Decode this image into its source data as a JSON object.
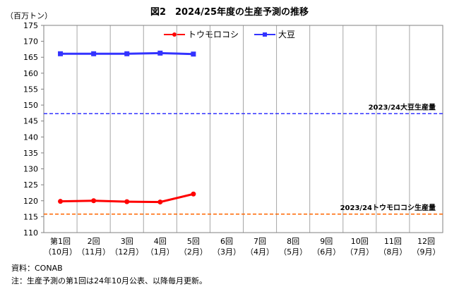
{
  "title": "図2　2024/25年度の生産予測の推移",
  "unit_label": "（百万トン）",
  "legend": [
    {
      "label": "トウモロコシ",
      "color": "#ff0000"
    },
    {
      "label": "大豆",
      "color": "#3333ff"
    }
  ],
  "notes": {
    "source": "資料：CONAB",
    "footnote": "注：生産予測の第1回は24年10月公表、以降毎月更新。"
  },
  "chart_data": {
    "type": "line",
    "x_top": [
      "第1回",
      "2回",
      "3回",
      "4回",
      "5回",
      "6回",
      "7回",
      "8回",
      "9回",
      "10回",
      "11回",
      "12回"
    ],
    "x_bottom": [
      "（10月）",
      "（11月）",
      "（12月）",
      "（1月）",
      "（2月）",
      "（3月）",
      "（4月）",
      "（5月）",
      "（6月）",
      "（7月）",
      "（8月）",
      "（9月）"
    ],
    "ylim": [
      110,
      175
    ],
    "yticks": [
      110,
      115,
      120,
      125,
      130,
      135,
      140,
      145,
      150,
      155,
      160,
      165,
      170,
      175
    ],
    "grid": "vertical",
    "series": [
      {
        "name": "トウモロコシ",
        "color": "#ff0000",
        "marker": "circle",
        "values": [
          119.8,
          120.0,
          119.7,
          119.6,
          122.1
        ]
      },
      {
        "name": "大豆",
        "color": "#3333ff",
        "marker": "square",
        "values": [
          166.1,
          166.1,
          166.1,
          166.3,
          166.0
        ]
      }
    ],
    "reference_lines": [
      {
        "label": "2023/24大豆生産量",
        "value": 147.3,
        "color": "#3333ff",
        "style": "dashed"
      },
      {
        "label": "2023/24トウモロコシ生産量",
        "value": 115.8,
        "color": "#ff6600",
        "style": "dashed"
      }
    ]
  }
}
